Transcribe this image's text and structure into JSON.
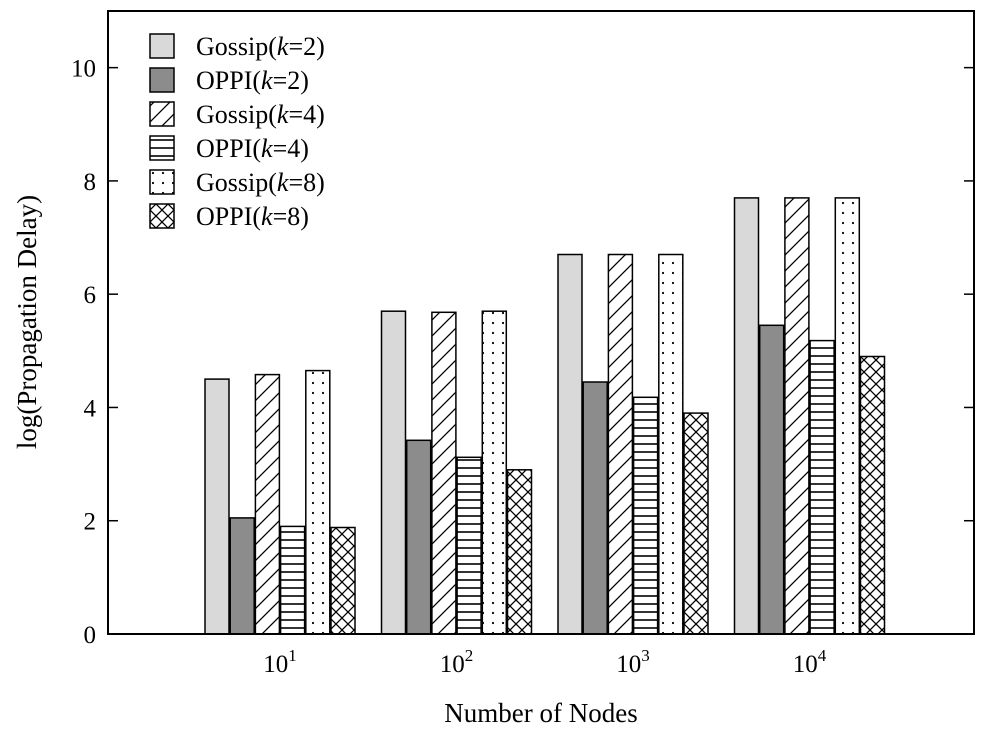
{
  "chart_data": {
    "type": "bar",
    "xlabel": "Number of Nodes",
    "ylabel": "log(Propagation Delay)",
    "ylim": [
      0,
      11
    ],
    "yticks": [
      0,
      2,
      4,
      6,
      8,
      10
    ],
    "grid": false,
    "legend_position": "top-left",
    "categories": [
      {
        "base": "10",
        "exp": "1"
      },
      {
        "base": "10",
        "exp": "2"
      },
      {
        "base": "10",
        "exp": "3"
      },
      {
        "base": "10",
        "exp": "4"
      }
    ],
    "series": [
      {
        "label_main": "Gossip(",
        "label_k": "k",
        "label_eq": "=2)",
        "fill": "#d9d9d9",
        "pattern": "none",
        "values": [
          4.5,
          5.7,
          6.7,
          7.7
        ]
      },
      {
        "label_main": "OPPI(",
        "label_k": "k",
        "label_eq": "=2)",
        "fill": "#8c8c8c",
        "pattern": "none",
        "values": [
          2.05,
          3.42,
          4.45,
          5.45
        ]
      },
      {
        "label_main": "Gossip(",
        "label_k": "k",
        "label_eq": "=4)",
        "fill": "#ffffff",
        "pattern": "diagonal",
        "values": [
          4.58,
          5.68,
          6.7,
          7.7
        ]
      },
      {
        "label_main": "OPPI(",
        "label_k": "k",
        "label_eq": "=4)",
        "fill": "#ffffff",
        "pattern": "horizontal",
        "values": [
          1.9,
          3.12,
          4.18,
          5.18
        ]
      },
      {
        "label_main": "Gossip(",
        "label_k": "k",
        "label_eq": "=8)",
        "fill": "#ffffff",
        "pattern": "dots",
        "values": [
          4.65,
          5.7,
          6.7,
          7.7
        ]
      },
      {
        "label_main": "OPPI(",
        "label_k": "k",
        "label_eq": "=8)",
        "fill": "#ffffff",
        "pattern": "cross",
        "values": [
          1.88,
          2.9,
          3.9,
          4.9
        ]
      }
    ]
  }
}
